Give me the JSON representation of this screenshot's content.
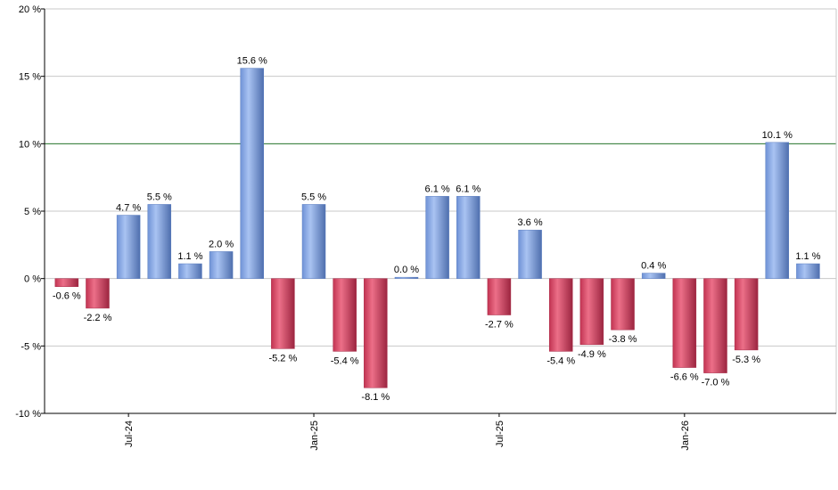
{
  "chart_data": {
    "type": "bar",
    "title": "",
    "xlabel": "",
    "ylabel": "",
    "ylim": [
      -10,
      20
    ],
    "y_ticks": [
      -10,
      -5,
      0,
      5,
      10,
      15,
      20
    ],
    "y_tick_labels": [
      "-10 %",
      "-5 %",
      "0 %",
      "5 %",
      "10 %",
      "15 %",
      "20 %"
    ],
    "reference_line": {
      "value": 10,
      "color": "#2e7d32"
    },
    "grid": true,
    "x_tick_labels": [
      {
        "label": "Jul-24",
        "index": 2
      },
      {
        "label": "Jan-25",
        "index": 8
      },
      {
        "label": "Jul-25",
        "index": 14
      },
      {
        "label": "Jan-26",
        "index": 20
      }
    ],
    "values": [
      -0.6,
      -2.2,
      4.7,
      5.5,
      1.1,
      2.0,
      15.6,
      -5.2,
      5.5,
      -5.4,
      -8.1,
      0.0,
      6.1,
      6.1,
      -2.7,
      3.6,
      -5.4,
      -4.9,
      -3.8,
      0.4,
      -6.6,
      -7.0,
      -5.3,
      10.1,
      1.1
    ],
    "value_labels": [
      "-0.6 %",
      "-2.2 %",
      "4.7 %",
      "5.5 %",
      "1.1 %",
      "2.0 %",
      "15.6 %",
      "-5.2 %",
      "5.5 %",
      "-5.4 %",
      "-8.1 %",
      "0.0 %",
      "6.1 %",
      "6.1 %",
      "-2.7 %",
      "3.6 %",
      "-5.4 %",
      "-4.9 %",
      "-3.8 %",
      "0.4 %",
      "-6.6 %",
      "-7.0 %",
      "-5.3 %",
      "10.1 %",
      "1.1 %"
    ],
    "colors": {
      "positive": "#7ea3e6",
      "negative": "#d9405e"
    }
  }
}
